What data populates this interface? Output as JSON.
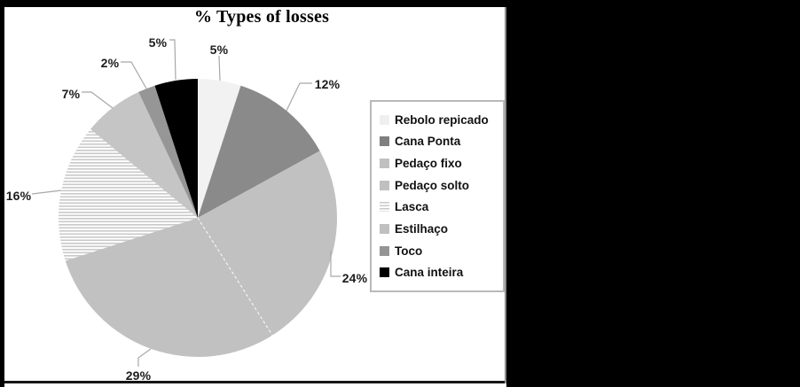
{
  "chart_data": {
    "type": "pie",
    "title": "% Types of losses",
    "unit": "%",
    "start_angle_deg": 0,
    "direction": "clockwise",
    "legend_position": "right",
    "categories": [
      "Rebolo repicado",
      "Cana Ponta",
      "Pedaço fixo",
      "Pedaço solto",
      "Lasca",
      "Estilhaço",
      "Toco",
      "Cana inteira"
    ],
    "values": [
      5,
      12,
      24,
      29,
      16,
      7,
      2,
      5
    ],
    "data_labels": [
      "5%",
      "12%",
      "24%",
      "29%",
      "16%",
      "7%",
      "2%",
      "5%"
    ],
    "colors": [
      "#f2f2f2",
      "#8a8a8a",
      "#c1c1c1",
      "#c1c1c1",
      "stripes",
      "#c5c5c5",
      "#969696",
      "#000000"
    ],
    "stripe_pattern": {
      "line_color": "#c9c9c9",
      "bg_color": "#ffffff",
      "orientation": "horizontal"
    },
    "leader_line_color": "#a8a8a8",
    "slice_divider": {
      "between": [
        "Pedaço fixo",
        "Pedaço solto"
      ],
      "style": "dashed",
      "color": "#ffffff"
    }
  },
  "legend": {
    "items": [
      {
        "label": "Rebolo repicado",
        "swatch": "#efefef"
      },
      {
        "label": "Cana Ponta",
        "swatch": "#7f7f7f"
      },
      {
        "label": "Pedaço fixo",
        "swatch": "#c0c0c0"
      },
      {
        "label": "Pedaço solto",
        "swatch": "#c0c0c0"
      },
      {
        "label": "Lasca",
        "swatch": "stripes"
      },
      {
        "label": "Estilhaço",
        "swatch": "#c0c0c0"
      },
      {
        "label": "Toco",
        "swatch": "#959595"
      },
      {
        "label": "Cana inteira",
        "swatch": "#000000"
      }
    ]
  },
  "page": {
    "background": "#000000",
    "figure_background": "#ffffff"
  }
}
